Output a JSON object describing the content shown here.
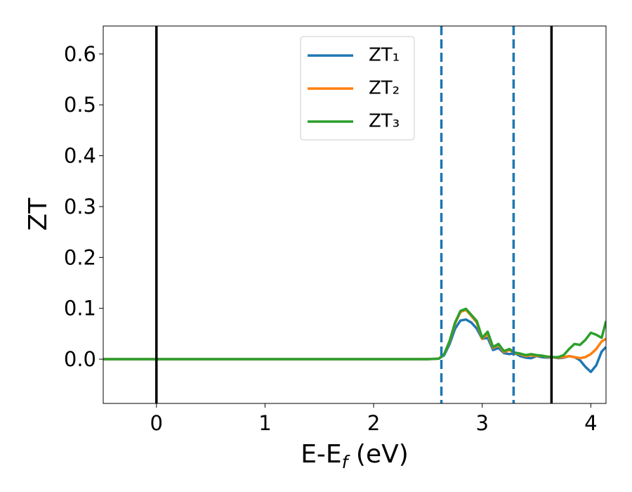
{
  "chart_data": {
    "type": "line",
    "xlabel": [
      "E-E",
      "f",
      " (eV)"
    ],
    "ylabel": "ZT",
    "x": [
      -0.49,
      0,
      0.5,
      1,
      1.5,
      2,
      2.5,
      2.6,
      2.65,
      2.7,
      2.75,
      2.8,
      2.85,
      2.9,
      2.95,
      3.0,
      3.05,
      3.1,
      3.15,
      3.2,
      3.25,
      3.3,
      3.35,
      3.4,
      3.45,
      3.5,
      3.55,
      3.6,
      3.65,
      3.7,
      3.75,
      3.8,
      3.85,
      3.9,
      3.95,
      4.0,
      4.05,
      4.1,
      4.14
    ],
    "series": [
      {
        "name": "ZT₁",
        "color": "#1f77b4",
        "values": [
          0,
          0,
          0,
          0,
          0,
          0,
          0,
          0.001,
          0.008,
          0.03,
          0.06,
          0.076,
          0.078,
          0.072,
          0.06,
          0.04,
          0.042,
          0.018,
          0.022,
          0.012,
          0.01,
          0.012,
          0.006,
          0.003,
          0.002,
          0.006,
          0.004,
          0.003,
          0.004,
          0.002,
          0.003,
          0.006,
          0.004,
          -0.002,
          -0.015,
          -0.025,
          -0.012,
          0.015,
          0.024
        ]
      },
      {
        "name": "ZT₂",
        "color": "#ff7f0e",
        "values": [
          0,
          0,
          0,
          0,
          0,
          0,
          0,
          0.001,
          0.01,
          0.035,
          0.07,
          0.093,
          0.097,
          0.085,
          0.072,
          0.04,
          0.05,
          0.022,
          0.028,
          0.014,
          0.018,
          0.012,
          0.01,
          0.006,
          0.008,
          0.006,
          0.007,
          0.004,
          0.004,
          0.003,
          0.004,
          0.006,
          0.004,
          0.002,
          0.004,
          0.01,
          0.02,
          0.035,
          0.04
        ]
      },
      {
        "name": "ZT₃",
        "color": "#2ca02c",
        "values": [
          0,
          0,
          0,
          0,
          0,
          0,
          0,
          0.001,
          0.01,
          0.036,
          0.072,
          0.095,
          0.099,
          0.087,
          0.075,
          0.042,
          0.054,
          0.024,
          0.03,
          0.016,
          0.02,
          0.013,
          0.011,
          0.008,
          0.01,
          0.008,
          0.007,
          0.005,
          0.004,
          0.004,
          0.008,
          0.02,
          0.03,
          0.028,
          0.038,
          0.052,
          0.048,
          0.042,
          0.075
        ]
      }
    ],
    "vlines": [
      {
        "x": 0,
        "color": "#000000",
        "style": "solid"
      },
      {
        "x": 3.638,
        "color": "#000000",
        "style": "solid"
      },
      {
        "x": 2.624,
        "color": "#1f77b4",
        "style": "dashed"
      },
      {
        "x": 3.289,
        "color": "#1f77b4",
        "style": "dashed"
      }
    ],
    "xlim": [
      -0.49,
      4.14
    ],
    "ylim": [
      -0.087,
      0.655
    ],
    "xticks": [
      0,
      1,
      2,
      3,
      4
    ],
    "yticks": [
      {
        "value": 0,
        "label": "0.0"
      },
      0.1,
      0.2,
      0.3,
      0.4,
      0.5,
      0.6
    ],
    "grid": false,
    "legend": "upper center"
  }
}
